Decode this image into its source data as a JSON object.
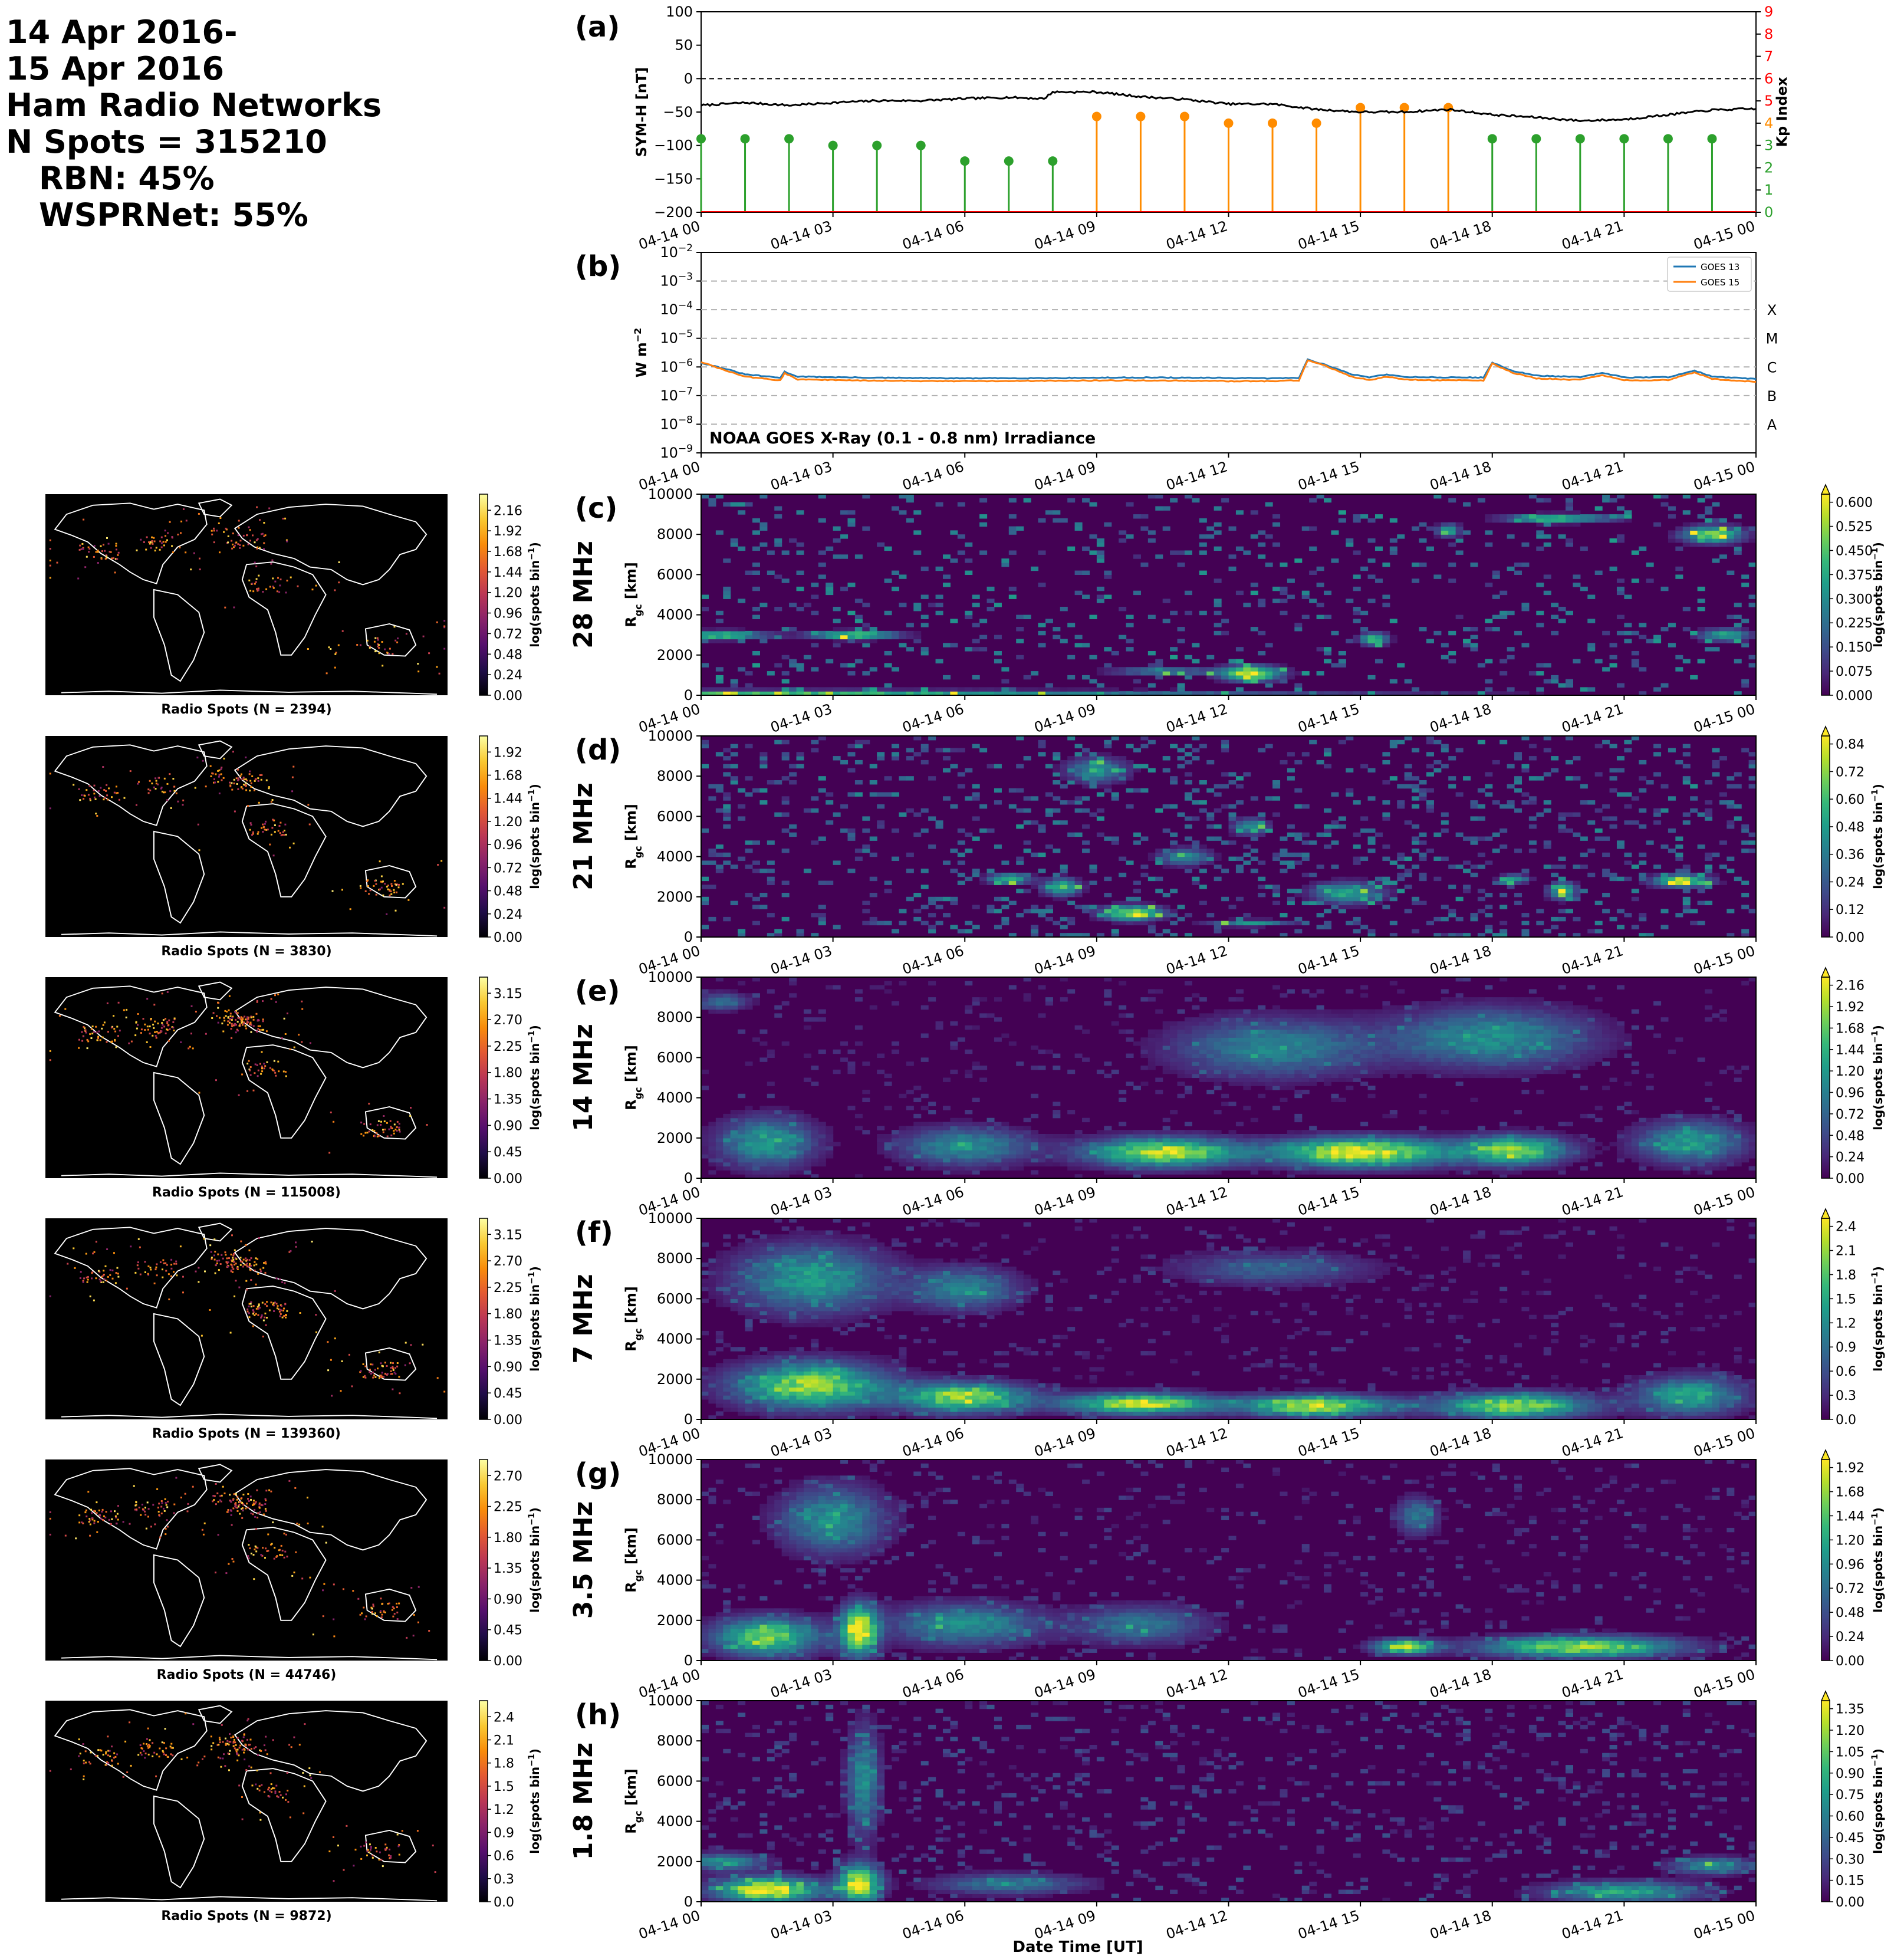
{
  "header": {
    "date_line1": "14 Apr 2016-",
    "date_line2": "15 Apr 2016",
    "network": "Ham Radio Networks",
    "n_spots": "N Spots = 315210",
    "rbn": "RBN: 45%",
    "wsprnet": "WSPRNet: 55%"
  },
  "time_ticks": [
    "04-14 00",
    "04-14 03",
    "04-14 06",
    "04-14 09",
    "04-14 12",
    "04-14 15",
    "04-14 18",
    "04-14 21",
    "04-15 00"
  ],
  "xlabel": "Date Time [UT]",
  "colors": {
    "symh": "#000000",
    "kp_green": "#2ca02c",
    "kp_orange": "#ff8c00",
    "goes13": "#1f77b4",
    "goes15": "#ff7f0e",
    "map_bg": "#000000",
    "coast": "#ffffff"
  },
  "chart_data": [
    {
      "type": "line",
      "panel": "(a)",
      "ylabel": "SYM-H [nT]",
      "ylabel_right": "Kp Index",
      "ylim": [
        -200,
        100
      ],
      "yticks": [
        100,
        50,
        0,
        -50,
        -100,
        -150,
        -200
      ],
      "ylim_right": [
        0,
        9
      ],
      "yticks_right": [
        0,
        1,
        2,
        3,
        4,
        5,
        6,
        7,
        8,
        9
      ],
      "reference_line": 0,
      "symh_x_hours": [
        0,
        1,
        2,
        3,
        4,
        5,
        6,
        7,
        7.8,
        8.0,
        9,
        10,
        11,
        12,
        13,
        14,
        15,
        16,
        17,
        18,
        19,
        20,
        21,
        22,
        23,
        24
      ],
      "symh_values": [
        -40,
        -36,
        -40,
        -36,
        -33,
        -33,
        -30,
        -28,
        -30,
        -20,
        -20,
        -27,
        -31,
        -38,
        -38,
        -46,
        -50,
        -50,
        -46,
        -54,
        -58,
        -63,
        -61,
        -54,
        -47,
        -45
      ],
      "kp_x_hours": [
        0,
        1,
        2,
        3,
        4,
        5,
        6,
        7,
        8,
        9,
        10,
        11,
        12,
        13,
        14,
        15,
        16,
        17,
        18,
        19,
        20,
        21,
        22,
        23
      ],
      "kp_values": [
        3.3,
        3.3,
        3.3,
        3.0,
        3.0,
        3.0,
        2.3,
        2.3,
        2.3,
        4.3,
        4.3,
        4.3,
        4.0,
        4.0,
        4.0,
        4.7,
        4.7,
        4.7,
        3.3,
        3.3,
        3.3,
        3.3,
        3.3,
        3.3
      ]
    },
    {
      "type": "line",
      "panel": "(b)",
      "ylabel": "W m",
      "ylabel_sup": "−2",
      "log_scale": true,
      "ylim_exp": [
        -9,
        -2
      ],
      "class_labels": [
        "A",
        "B",
        "C",
        "M",
        "X"
      ],
      "class_exp": [
        -8,
        -7,
        -6,
        -5,
        -4
      ],
      "annotation": "NOAA GOES X-Ray (0.1 - 0.8 nm) Irradiance",
      "series": [
        {
          "name": "GOES 13",
          "x_hours": [
            0,
            0.5,
            1.0,
            1.8,
            1.9,
            2.2,
            3,
            4,
            6,
            8,
            10,
            11,
            12,
            13.0,
            13.6,
            13.8,
            14.2,
            14.8,
            15.2,
            15.6,
            16,
            17,
            17.8,
            18.0,
            18.5,
            19,
            20,
            20.5,
            21,
            22,
            22.6,
            23,
            24
          ],
          "values": [
            1.4e-06,
            9e-07,
            5.5e-07,
            4.2e-07,
            6.8e-07,
            4.6e-07,
            4.4e-07,
            4.2e-07,
            4e-07,
            4.1e-07,
            4.3e-07,
            4.2e-07,
            4.1e-07,
            4e-07,
            4.2e-07,
            1.8e-06,
            1.2e-06,
            5.5e-07,
            4.4e-07,
            5.5e-07,
            4.5e-07,
            4.3e-07,
            4.3e-07,
            1.4e-06,
            7e-07,
            5e-07,
            4.4e-07,
            6.2e-07,
            4.3e-07,
            4.4e-07,
            7.5e-07,
            4.6e-07,
            3.8e-07
          ]
        },
        {
          "name": "GOES 15",
          "x_hours": [
            0,
            0.5,
            1.0,
            1.8,
            1.9,
            2.2,
            3,
            4,
            6,
            8,
            10,
            11,
            12,
            13.0,
            13.6,
            13.8,
            14.2,
            14.8,
            15.2,
            15.6,
            16,
            17,
            17.8,
            18.0,
            18.5,
            19,
            20,
            20.5,
            21,
            22,
            22.6,
            23,
            24
          ],
          "values": [
            1.5e-06,
            8e-07,
            4.6e-07,
            3.4e-07,
            6e-07,
            3.7e-07,
            3.5e-07,
            3.3e-07,
            3.2e-07,
            3.3e-07,
            3.4e-07,
            3.3e-07,
            3.2e-07,
            3.2e-07,
            3.4e-07,
            1.7e-06,
            1.1e-06,
            4.6e-07,
            3.5e-07,
            4.6e-07,
            3.6e-07,
            3.4e-07,
            3.4e-07,
            1.3e-06,
            6e-07,
            4e-07,
            3.5e-07,
            5.2e-07,
            3.4e-07,
            3.5e-07,
            6.5e-07,
            3.8e-07,
            3e-07
          ]
        }
      ]
    },
    {
      "type": "heatmap",
      "panel": "(c)",
      "band": "28 MHz",
      "ylabel": "R",
      "ylabel_sub": "gc",
      "ylabel_unit": "[km]",
      "ylim": [
        0,
        10000
      ],
      "yticks": [
        0,
        2000,
        4000,
        6000,
        8000,
        10000
      ],
      "colorbar_ticks": [
        "0.000",
        "0.075",
        "0.150",
        "0.225",
        "0.300",
        "0.375",
        "0.450",
        "0.525",
        "0.600"
      ],
      "colorbar_label": "log(spots bin",
      "colorbar_label_sup": "−1",
      "colorbar_label_end": ")",
      "map_colorbar_ticks": [
        "0.00",
        "0.24",
        "0.48",
        "0.72",
        "0.96",
        "1.20",
        "1.44",
        "1.68",
        "1.92",
        "2.16"
      ],
      "map_caption": "Radio Spots (N = 2394)",
      "spots": 2394,
      "blobs": [
        [
          0.5,
          3000,
          1.5,
          200,
          0.8
        ],
        [
          3.5,
          3000,
          1.6,
          200,
          0.8
        ],
        [
          0,
          100,
          24,
          150,
          0.7
        ],
        [
          12.5,
          1100,
          1,
          350,
          1.0
        ],
        [
          15.3,
          2800,
          0.3,
          300,
          0.7
        ],
        [
          19.5,
          8800,
          2,
          200,
          0.7
        ],
        [
          23,
          8000,
          1,
          400,
          0.8
        ],
        [
          23.3,
          3000,
          0.8,
          300,
          0.6
        ],
        [
          10.5,
          1200,
          2,
          150,
          0.5
        ],
        [
          17,
          8200,
          0.2,
          300,
          0.6
        ]
      ],
      "noise": [
        0.1,
        0.35
      ]
    },
    {
      "type": "heatmap",
      "panel": "(d)",
      "band": "21 MHz",
      "ylabel": "R",
      "ylabel_sub": "gc",
      "ylabel_unit": "[km]",
      "ylim": [
        0,
        10000
      ],
      "yticks": [
        0,
        2000,
        4000,
        6000,
        8000,
        10000
      ],
      "colorbar_ticks": [
        "0.00",
        "0.12",
        "0.24",
        "0.36",
        "0.48",
        "0.60",
        "0.72",
        "0.84"
      ],
      "colorbar_label": "log(spots bin",
      "colorbar_label_sup": "−1",
      "colorbar_label_end": ")",
      "map_colorbar_ticks": [
        "0.00",
        "0.24",
        "0.48",
        "0.72",
        "0.96",
        "1.20",
        "1.44",
        "1.68",
        "1.92"
      ],
      "map_caption": "Radio Spots (N = 3830)",
      "spots": 3830,
      "blobs": [
        [
          9.8,
          1200,
          1,
          350,
          0.9
        ],
        [
          8.2,
          2500,
          0.5,
          400,
          0.7
        ],
        [
          7,
          2900,
          0.6,
          250,
          0.7
        ],
        [
          12.5,
          700,
          1.5,
          150,
          0.5
        ],
        [
          14.7,
          2200,
          1.2,
          500,
          0.6
        ],
        [
          18.5,
          2900,
          0.3,
          200,
          0.6
        ],
        [
          19.6,
          2300,
          0.3,
          400,
          0.7
        ],
        [
          22.3,
          2800,
          0.9,
          300,
          0.9
        ],
        [
          12.5,
          5500,
          0.5,
          400,
          0.5
        ],
        [
          9,
          8300,
          1,
          600,
          0.5
        ],
        [
          11,
          4000,
          0.8,
          400,
          0.5
        ]
      ],
      "noise": [
        0.16,
        0.32
      ]
    },
    {
      "type": "heatmap",
      "panel": "(e)",
      "band": "14 MHz",
      "ylabel": "R",
      "ylabel_sub": "gc",
      "ylabel_unit": "[km]",
      "ylim": [
        0,
        10000
      ],
      "yticks": [
        0,
        2000,
        4000,
        6000,
        8000,
        10000
      ],
      "colorbar_ticks": [
        "0.00",
        "0.24",
        "0.48",
        "0.72",
        "0.96",
        "1.20",
        "1.44",
        "1.68",
        "1.92",
        "2.16"
      ],
      "colorbar_label": "log(spots bin",
      "colorbar_label_sup": "−1",
      "colorbar_label_end": ")",
      "map_colorbar_ticks": [
        "0.00",
        "0.45",
        "0.90",
        "1.35",
        "1.80",
        "2.25",
        "2.70",
        "3.15"
      ],
      "map_caption": "Radio Spots (N = 115008)",
      "spots": 115008,
      "blobs": [
        [
          1.5,
          1800,
          1.8,
          1200,
          0.55
        ],
        [
          6,
          1600,
          2.5,
          900,
          0.5
        ],
        [
          10.5,
          1300,
          3,
          700,
          0.9
        ],
        [
          15,
          1300,
          3.5,
          700,
          1.0
        ],
        [
          18.5,
          1400,
          2,
          700,
          0.8
        ],
        [
          13,
          6500,
          4,
          1400,
          0.45
        ],
        [
          18,
          7000,
          4,
          1400,
          0.5
        ],
        [
          22.5,
          1800,
          2,
          1000,
          0.55
        ],
        [
          0.5,
          8800,
          0.8,
          400,
          0.4
        ]
      ],
      "noise": [
        0.08,
        0.12
      ]
    },
    {
      "type": "heatmap",
      "panel": "(f)",
      "band": "7 MHz",
      "ylabel": "R",
      "ylabel_sub": "gc",
      "ylabel_unit": "[km]",
      "ylim": [
        0,
        10000
      ],
      "yticks": [
        0,
        2000,
        4000,
        6000,
        8000,
        10000
      ],
      "colorbar_ticks": [
        "0.0",
        "0.3",
        "0.6",
        "0.9",
        "1.2",
        "1.5",
        "1.8",
        "2.1",
        "2.4"
      ],
      "colorbar_label": "log(spots bin",
      "colorbar_label_sup": "−1",
      "colorbar_label_end": ")",
      "map_colorbar_ticks": [
        "0.00",
        "0.45",
        "0.90",
        "1.35",
        "1.80",
        "2.25",
        "2.70",
        "3.15"
      ],
      "map_caption": "Radio Spots (N = 139360)",
      "spots": 139360,
      "blobs": [
        [
          2.5,
          1700,
          3,
          1100,
          0.85
        ],
        [
          6,
          1100,
          2.5,
          700,
          0.85
        ],
        [
          10,
          800,
          3,
          500,
          0.9
        ],
        [
          14,
          700,
          3,
          500,
          0.9
        ],
        [
          18.5,
          700,
          3,
          600,
          0.85
        ],
        [
          22.5,
          1200,
          2,
          900,
          0.6
        ],
        [
          2.5,
          7000,
          3,
          1600,
          0.55
        ],
        [
          6,
          6500,
          2,
          1000,
          0.45
        ],
        [
          13,
          7500,
          4,
          800,
          0.3
        ]
      ],
      "noise": [
        0.1,
        0.12
      ]
    },
    {
      "type": "heatmap",
      "panel": "(g)",
      "band": "3.5 MHz",
      "ylabel": "R",
      "ylabel_sub": "gc",
      "ylabel_unit": "[km]",
      "ylim": [
        0,
        10000
      ],
      "yticks": [
        0,
        2000,
        4000,
        6000,
        8000,
        10000
      ],
      "colorbar_ticks": [
        "0.00",
        "0.24",
        "0.48",
        "0.72",
        "0.96",
        "1.20",
        "1.44",
        "1.68",
        "1.92"
      ],
      "colorbar_label": "log(spots bin",
      "colorbar_label_sup": "−1",
      "colorbar_label_end": ")",
      "map_colorbar_ticks": [
        "0.00",
        "0.45",
        "0.90",
        "1.35",
        "1.80",
        "2.25",
        "2.70"
      ],
      "map_caption": "Radio Spots (N = 44746)",
      "spots": 44746,
      "blobs": [
        [
          1.5,
          1200,
          2,
          900,
          0.8
        ],
        [
          3.6,
          1500,
          0.5,
          1200,
          1.0
        ],
        [
          6,
          1800,
          3,
          1000,
          0.5
        ],
        [
          10,
          1800,
          2.5,
          900,
          0.4
        ],
        [
          16,
          700,
          1,
          350,
          0.9
        ],
        [
          20,
          700,
          4,
          500,
          0.85
        ],
        [
          3,
          7000,
          2,
          1600,
          0.5
        ],
        [
          16.3,
          7200,
          0.6,
          900,
          0.4
        ]
      ],
      "noise": [
        0.1,
        0.14
      ]
    },
    {
      "type": "heatmap",
      "panel": "(h)",
      "band": "1.8 MHz",
      "ylabel": "R",
      "ylabel_sub": "gc",
      "ylabel_unit": "[km]",
      "ylim": [
        0,
        10000
      ],
      "yticks": [
        0,
        2000,
        4000,
        6000,
        8000,
        10000
      ],
      "colorbar_ticks": [
        "0.00",
        "0.15",
        "0.30",
        "0.45",
        "0.60",
        "0.75",
        "0.90",
        "1.05",
        "1.20",
        "1.35"
      ],
      "colorbar_label": "log(spots bin",
      "colorbar_label_sup": "−1",
      "colorbar_label_end": ")",
      "map_colorbar_ticks": [
        "0.0",
        "0.3",
        "0.6",
        "0.9",
        "1.2",
        "1.5",
        "1.8",
        "2.1",
        "2.4"
      ],
      "map_caption": "Radio Spots (N = 9872)",
      "spots": 9872,
      "blobs": [
        [
          1.5,
          600,
          2,
          600,
          1.0
        ],
        [
          3.6,
          900,
          0.6,
          900,
          1.0
        ],
        [
          0.5,
          2000,
          1.5,
          400,
          0.5
        ],
        [
          7,
          900,
          3,
          500,
          0.4
        ],
        [
          21,
          500,
          3,
          500,
          0.6
        ],
        [
          23,
          1800,
          1.5,
          400,
          0.5
        ],
        [
          3.7,
          6000,
          0.4,
          2500,
          0.5
        ]
      ],
      "noise": [
        0.12,
        0.18
      ]
    }
  ]
}
